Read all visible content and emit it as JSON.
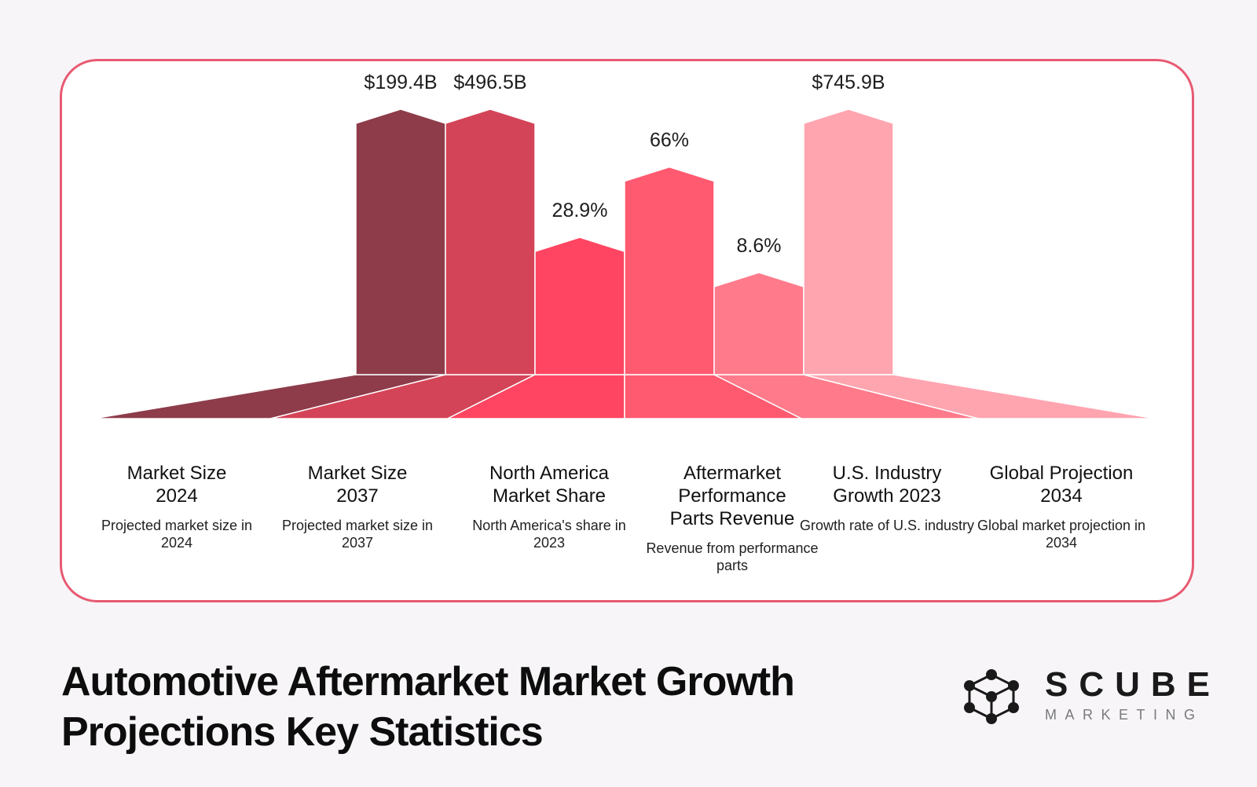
{
  "page_title": "Automotive Aftermarket Market Growth Projections Key Statistics",
  "logo": {
    "name": "SCUBE",
    "tagline": "MARKETING",
    "icon": "molecule-cube-icon"
  },
  "colors": [
    "#8e3c4a",
    "#d44458",
    "#ff4561",
    "#ff5a70",
    "#ff7a8b",
    "#ffa5b0"
  ],
  "chart_data": {
    "type": "bar",
    "categories": [
      "Market Size 2024",
      "Market Size 2037",
      "North America Market Share",
      "Aftermarket Performance Parts Revenue",
      "U.S. Industry Growth 2023",
      "Global Projection 2034"
    ],
    "descriptions": [
      "Projected market size in 2024",
      "Projected market size in 2037",
      "North America's share in 2023",
      "Revenue from performance parts",
      "Growth rate of U.S. industry",
      "Global market projection in 2034"
    ],
    "values": [
      100,
      100,
      49,
      77,
      35,
      100
    ],
    "value_labels": [
      "$199.4B",
      "$496.5B",
      "28.9%",
      "66%",
      "8.6%",
      "$745.9B"
    ],
    "bars_drawn": [
      {
        "label_index": 0
      },
      {
        "label_index": 1
      },
      {
        "label_index": 2
      },
      {
        "label_index": 3
      },
      {
        "label_index": 4
      },
      {
        "label_index": 5
      }
    ],
    "grid": false,
    "legend": "none"
  }
}
